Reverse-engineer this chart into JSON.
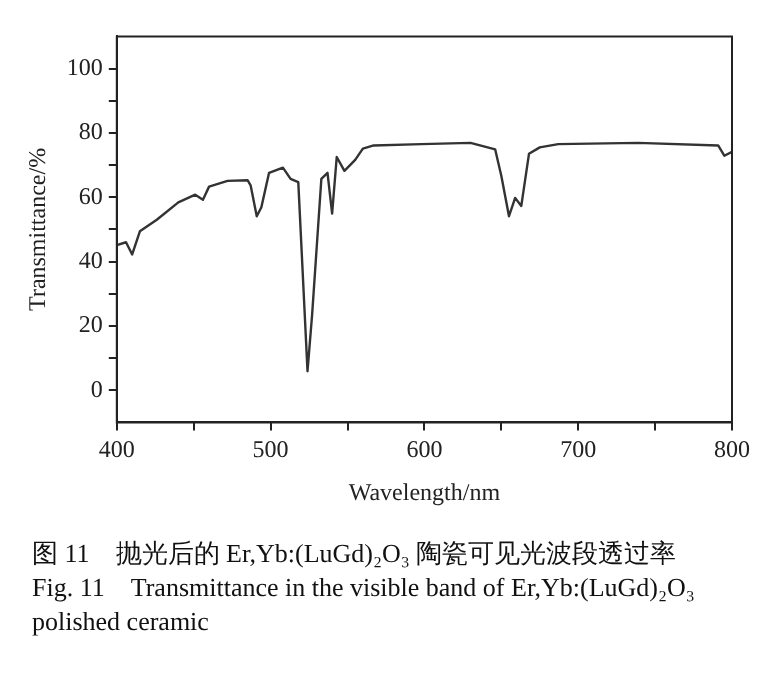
{
  "chart_data": {
    "type": "line",
    "xlabel": "Wavelength/nm",
    "ylabel": "Transmittance/%",
    "x": [
      400,
      406,
      410,
      415,
      426,
      440,
      451,
      456,
      460,
      472,
      485,
      487,
      491,
      494,
      499,
      508,
      513,
      518,
      524,
      527,
      533,
      537,
      540,
      543,
      548,
      555,
      560,
      567,
      598,
      630,
      646,
      650,
      655,
      659,
      663,
      668,
      675,
      687,
      739,
      791,
      795,
      800
    ],
    "series": [
      {
        "color": "#333333",
        "values": [
          45.1,
          46,
          42.2,
          49.4,
          53,
          58.4,
          60.8,
          59.2,
          63.3,
          65.1,
          65.3,
          63.7,
          54.1,
          56.9,
          67.6,
          69.2,
          65.7,
          64.7,
          5.9,
          23.5,
          65.7,
          67.6,
          54.9,
          72.5,
          68.2,
          71.6,
          75.1,
          76.1,
          76.5,
          76.9,
          74.9,
          66.7,
          54.1,
          59.8,
          57.3,
          73.5,
          75.5,
          76.5,
          76.9,
          76.1,
          72.9,
          74.1
        ]
      }
    ],
    "xlim": [
      400,
      800
    ],
    "xticks": [
      400,
      {
        "value": 450,
        "label": null
      },
      500,
      {
        "value": 550,
        "label": null
      },
      600,
      {
        "value": 650,
        "label": null
      },
      700,
      {
        "value": 750,
        "label": null
      },
      800
    ],
    "ylim": [
      -10,
      110
    ],
    "yticks": [
      0,
      {
        "value": 10,
        "label": null
      },
      20,
      {
        "value": 30,
        "label": null
      },
      40,
      {
        "value": 50,
        "label": null
      },
      60,
      {
        "value": 70,
        "label": null
      },
      80,
      {
        "value": 90,
        "label": null
      },
      100
    ],
    "grid": false,
    "legend": false,
    "marker": "none",
    "line_style": "solid",
    "annotations": [
      "图 11　抛光后的 Er,Yb:(LuGd)₂O₃ 陶瓷可见光波段透过率",
      "Fig. 11　Transmittance in the visible band of Er,Yb:(LuGd)₂O₃ polished ceramic"
    ]
  }
}
